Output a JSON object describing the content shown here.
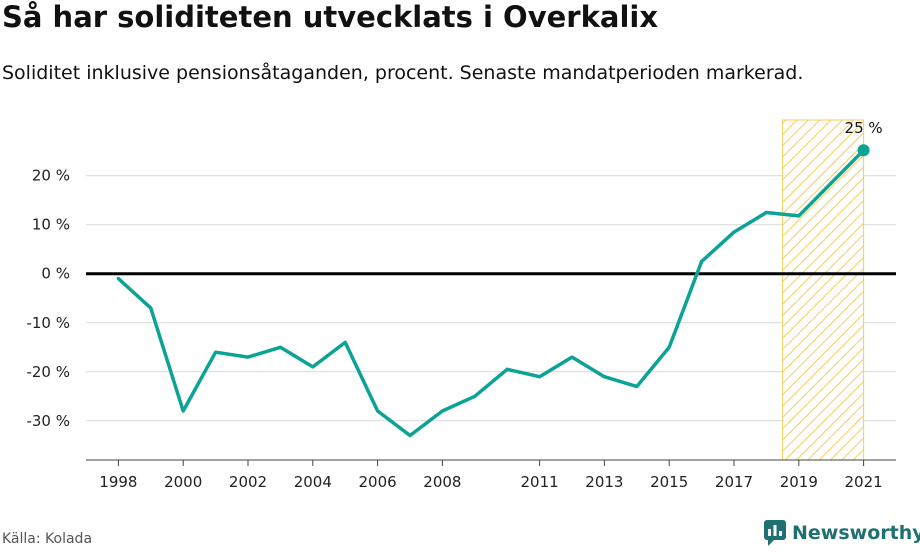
{
  "header": {
    "title": "Så har soliditeten utvecklats i Overkalix",
    "subtitle": "Soliditet inklusive pensionsåtaganden, procent. Senaste mandatperioden markerad."
  },
  "footer": {
    "source": "Källa: Kolada",
    "brand": "Newsworthy"
  },
  "colors": {
    "line": "#0aa396",
    "zero_line": "#000000",
    "grid": "#d9d9d9",
    "highlight": "#f7c94b"
  },
  "chart_data": {
    "type": "line",
    "title": "Så har soliditeten utvecklats i Overkalix",
    "subtitle": "Soliditet inklusive pensionsåtaganden, procent. Senaste mandatperioden markerad.",
    "xlabel": "",
    "ylabel": "",
    "x_range": [
      1997,
      2022
    ],
    "ylim": [
      -38,
      33
    ],
    "y_ticks": [
      20,
      10,
      0,
      -10,
      -20,
      -30
    ],
    "y_tick_labels": [
      "20 %",
      "10 %",
      "0 %",
      "-10 %",
      "-20 %",
      "-30 %"
    ],
    "x_ticks": [
      1998,
      2000,
      2002,
      2004,
      2006,
      2008,
      2011,
      2013,
      2015,
      2017,
      2019,
      2021
    ],
    "x_tick_labels": [
      "1998",
      "2000",
      "2002",
      "2004",
      "2006",
      "2008",
      "2011",
      "2013",
      "2015",
      "2017",
      "2019",
      "2021"
    ],
    "highlight_range": [
      2018.5,
      2021
    ],
    "series": [
      {
        "name": "Soliditet",
        "x": [
          1998,
          1999,
          2000,
          2001,
          2002,
          2003,
          2004,
          2005,
          2006,
          2007,
          2008,
          2009,
          2010,
          2011,
          2012,
          2013,
          2014,
          2015,
          2016,
          2017,
          2018,
          2019,
          2021
        ],
        "values": [
          -1,
          -7,
          -28,
          -16,
          -17,
          -15,
          -19,
          -14,
          -28,
          -33,
          -28,
          -25,
          -19.5,
          -21,
          -17,
          -21,
          -23,
          -15,
          2.5,
          8.5,
          12.5,
          11.8,
          25.2
        ]
      }
    ],
    "end_label": "25 %"
  }
}
